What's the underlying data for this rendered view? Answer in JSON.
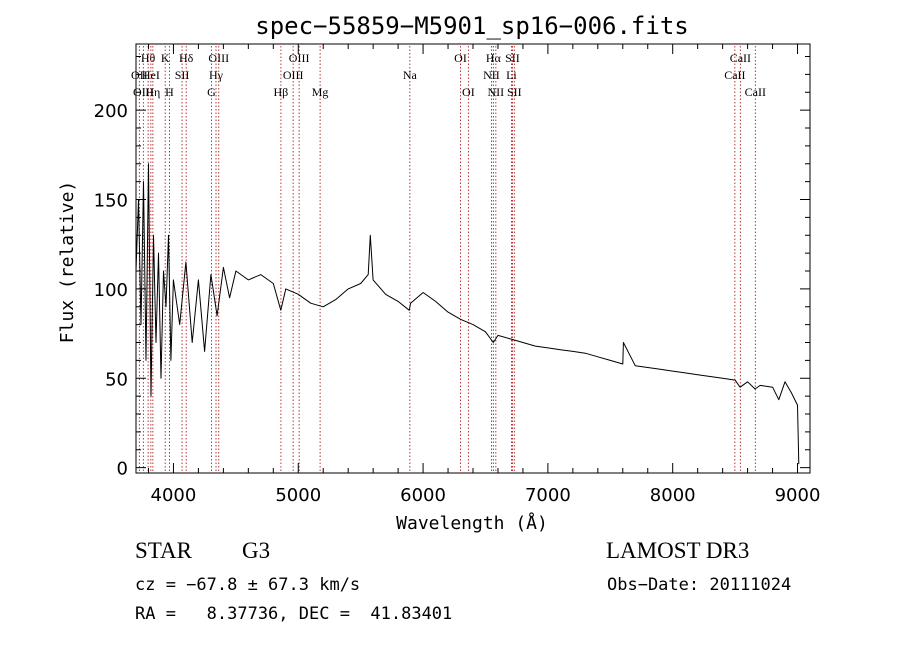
{
  "chart_data": {
    "type": "line",
    "title": "spec−55859−M5901_sp16−006.fits",
    "xlabel": "Wavelength (Å)",
    "ylabel": "Flux (relative)",
    "xlim": [
      3700,
      9100
    ],
    "ylim": [
      -3,
      237
    ],
    "x_ticks": [
      4000,
      5000,
      6000,
      7000,
      8000,
      9000
    ],
    "y_ticks": [
      0,
      50,
      100,
      150,
      200
    ],
    "x_tick_labels": [
      "4000",
      "5000",
      "6000",
      "7000",
      "8000",
      "9000"
    ],
    "y_tick_labels": [
      "0",
      "50",
      "100",
      "150",
      "200"
    ],
    "grid": false,
    "legend": "none",
    "series": [
      {
        "name": "flux",
        "x": [
          3700,
          3720,
          3740,
          3760,
          3780,
          3800,
          3820,
          3840,
          3860,
          3880,
          3900,
          3920,
          3940,
          3960,
          3980,
          4000,
          4050,
          4100,
          4150,
          4200,
          4250,
          4300,
          4350,
          4400,
          4450,
          4500,
          4600,
          4700,
          4800,
          4860,
          4900,
          5000,
          5100,
          5200,
          5300,
          5400,
          5500,
          5560,
          5577,
          5600,
          5700,
          5800,
          5890,
          5900,
          6000,
          6100,
          6200,
          6300,
          6400,
          6500,
          6563,
          6600,
          6700,
          6800,
          6900,
          7000,
          7100,
          7200,
          7300,
          7400,
          7500,
          7600,
          7605,
          7700,
          7800,
          7900,
          8000,
          8100,
          8200,
          8300,
          8400,
          8500,
          8540,
          8600,
          8660,
          8700,
          8800,
          8850,
          8900,
          8950,
          9000,
          9010
        ],
        "y": [
          110,
          150,
          80,
          160,
          60,
          170,
          40,
          130,
          70,
          120,
          50,
          110,
          90,
          130,
          60,
          105,
          80,
          115,
          70,
          105,
          65,
          108,
          85,
          112,
          95,
          110,
          105,
          108,
          103,
          88,
          100,
          97,
          92,
          90,
          94,
          100,
          103,
          108,
          130,
          105,
          97,
          93,
          88,
          92,
          98,
          93,
          87,
          83,
          80,
          76,
          70,
          74,
          72,
          70,
          68,
          67,
          66,
          65,
          64,
          62,
          60,
          58,
          70,
          57,
          56,
          55,
          54,
          53,
          52,
          51,
          50,
          49,
          45,
          48,
          44,
          46,
          45,
          38,
          48,
          42,
          35,
          2
        ]
      }
    ],
    "line_markers": [
      {
        "label": "Hθ",
        "x": 3797,
        "row": 1
      },
      {
        "label": "OII",
        "x": 3727,
        "row": 2
      },
      {
        "label": "OIII",
        "x": 3759,
        "row": 3
      },
      {
        "label": "HeI",
        "x": 3819,
        "row": 2
      },
      {
        "label": "Hη",
        "x": 3835,
        "row": 3
      },
      {
        "label": "K",
        "x": 3934,
        "row": 1
      },
      {
        "label": "SII",
        "x": 4069,
        "row": 2
      },
      {
        "label": "H",
        "x": 3968,
        "row": 3
      },
      {
        "label": "Hδ",
        "x": 4102,
        "row": 1
      },
      {
        "label": "OIII",
        "x": 4363,
        "row": 1
      },
      {
        "label": "Hγ",
        "x": 4341,
        "row": 2
      },
      {
        "label": "G",
        "x": 4305,
        "row": 3
      },
      {
        "label": "OIII",
        "x": 5007,
        "row": 1
      },
      {
        "label": "OIII",
        "x": 4959,
        "row": 2
      },
      {
        "label": "Hβ",
        "x": 4861,
        "row": 3
      },
      {
        "label": "Mg",
        "x": 5175,
        "row": 3
      },
      {
        "label": "Na",
        "x": 5894,
        "row": 2
      },
      {
        "label": "OI",
        "x": 6300,
        "row": 1
      },
      {
        "label": "OI",
        "x": 6363,
        "row": 3
      },
      {
        "label": "Hα",
        "x": 6563,
        "row": 1
      },
      {
        "label": "SII",
        "x": 6716,
        "row": 1
      },
      {
        "label": "NII",
        "x": 6548,
        "row": 2
      },
      {
        "label": "Li",
        "x": 6708,
        "row": 2
      },
      {
        "label": "NII",
        "x": 6583,
        "row": 3
      },
      {
        "label": "SII",
        "x": 6731,
        "row": 3
      },
      {
        "label": "CaII",
        "x": 8542,
        "row": 1
      },
      {
        "label": "CaII",
        "x": 8498,
        "row": 2
      },
      {
        "label": "CaII",
        "x": 8662,
        "row": 3
      }
    ]
  },
  "info": {
    "class_label": "STAR",
    "subclass_label": "G3",
    "survey_label": "LAMOST DR3",
    "redshift_text": "cz = −67.8 ± 67.3 km/s",
    "obs_date_text": "Obs−Date: 20111024",
    "coords_text": "RA =   8.37736, DEC =  41.83401"
  }
}
